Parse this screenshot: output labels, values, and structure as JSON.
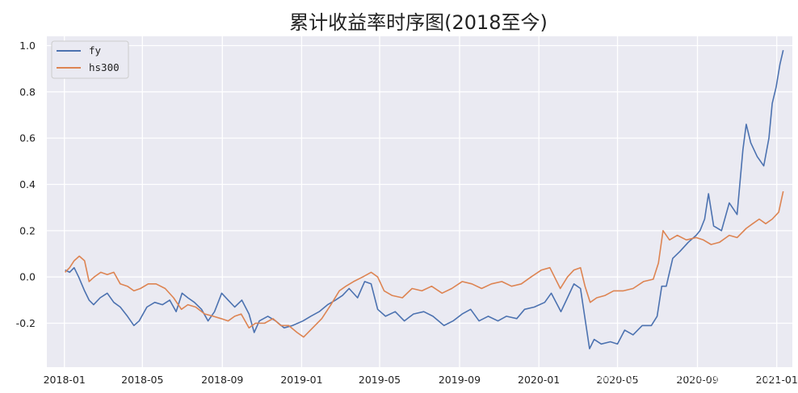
{
  "watermark": "https://blog.csdn.net/qq_42433152",
  "chart_data": {
    "type": "line",
    "title": "累计收益率时序图(2018至今)",
    "xlabel": "",
    "ylabel": "",
    "x_ticks": [
      "2018-01",
      "2018-05",
      "2018-09",
      "2019-01",
      "2019-05",
      "2019-09",
      "2020-01",
      "2020-05",
      "2020-09",
      "2021-01"
    ],
    "y_ticks": [
      "-0.2",
      "0.0",
      "0.2",
      "0.4",
      "0.6",
      "0.8",
      "1.0"
    ],
    "xlim": [
      "2017-12-05",
      "2021-01-25"
    ],
    "ylim": [
      -0.39,
      1.04
    ],
    "grid": true,
    "legend_position": "top-left",
    "colors": {
      "background": "#eaeaf2",
      "grid": "#ffffff"
    },
    "series": [
      {
        "name": "fy",
        "color": "#4c72b0",
        "points": [
          [
            "2018-01-02",
            0.03
          ],
          [
            "2018-01-09",
            0.02
          ],
          [
            "2018-01-16",
            0.04
          ],
          [
            "2018-01-23",
            0.0
          ],
          [
            "2018-02-01",
            -0.06
          ],
          [
            "2018-02-08",
            -0.1
          ],
          [
            "2018-02-15",
            -0.12
          ],
          [
            "2018-02-25",
            -0.09
          ],
          [
            "2018-03-08",
            -0.07
          ],
          [
            "2018-03-18",
            -0.11
          ],
          [
            "2018-03-28",
            -0.13
          ],
          [
            "2018-04-08",
            -0.17
          ],
          [
            "2018-04-18",
            -0.21
          ],
          [
            "2018-04-26",
            -0.19
          ],
          [
            "2018-05-08",
            -0.13
          ],
          [
            "2018-05-20",
            -0.11
          ],
          [
            "2018-06-01",
            -0.12
          ],
          [
            "2018-06-12",
            -0.1
          ],
          [
            "2018-06-22",
            -0.15
          ],
          [
            "2018-07-01",
            -0.07
          ],
          [
            "2018-07-10",
            -0.09
          ],
          [
            "2018-07-20",
            -0.11
          ],
          [
            "2018-07-31",
            -0.14
          ],
          [
            "2018-08-10",
            -0.19
          ],
          [
            "2018-08-20",
            -0.15
          ],
          [
            "2018-08-31",
            -0.07
          ],
          [
            "2018-09-10",
            -0.1
          ],
          [
            "2018-09-20",
            -0.13
          ],
          [
            "2018-10-01",
            -0.1
          ],
          [
            "2018-10-12",
            -0.16
          ],
          [
            "2018-10-20",
            -0.24
          ],
          [
            "2018-10-28",
            -0.19
          ],
          [
            "2018-11-10",
            -0.17
          ],
          [
            "2018-11-22",
            -0.19
          ],
          [
            "2018-12-05",
            -0.22
          ],
          [
            "2018-12-18",
            -0.21
          ],
          [
            "2019-01-03",
            -0.19
          ],
          [
            "2019-01-15",
            -0.17
          ],
          [
            "2019-01-28",
            -0.15
          ],
          [
            "2019-02-10",
            -0.12
          ],
          [
            "2019-02-22",
            -0.1
          ],
          [
            "2019-03-05",
            -0.08
          ],
          [
            "2019-03-15",
            -0.05
          ],
          [
            "2019-03-28",
            -0.09
          ],
          [
            "2019-04-08",
            -0.02
          ],
          [
            "2019-04-18",
            -0.03
          ],
          [
            "2019-04-28",
            -0.14
          ],
          [
            "2019-05-10",
            -0.17
          ],
          [
            "2019-05-25",
            -0.15
          ],
          [
            "2019-06-08",
            -0.19
          ],
          [
            "2019-06-22",
            -0.16
          ],
          [
            "2019-07-08",
            -0.15
          ],
          [
            "2019-07-22",
            -0.17
          ],
          [
            "2019-08-08",
            -0.21
          ],
          [
            "2019-08-22",
            -0.19
          ],
          [
            "2019-09-05",
            -0.16
          ],
          [
            "2019-09-18",
            -0.14
          ],
          [
            "2019-10-01",
            -0.19
          ],
          [
            "2019-10-15",
            -0.17
          ],
          [
            "2019-10-30",
            -0.19
          ],
          [
            "2019-11-12",
            -0.17
          ],
          [
            "2019-11-28",
            -0.18
          ],
          [
            "2019-12-10",
            -0.14
          ],
          [
            "2019-12-25",
            -0.13
          ],
          [
            "2020-01-10",
            -0.11
          ],
          [
            "2020-01-20",
            -0.07
          ],
          [
            "2020-02-04",
            -0.15
          ],
          [
            "2020-02-14",
            -0.09
          ],
          [
            "2020-02-24",
            -0.03
          ],
          [
            "2020-03-05",
            -0.05
          ],
          [
            "2020-03-12",
            -0.18
          ],
          [
            "2020-03-19",
            -0.31
          ],
          [
            "2020-03-26",
            -0.27
          ],
          [
            "2020-04-06",
            -0.29
          ],
          [
            "2020-04-20",
            -0.28
          ],
          [
            "2020-05-01",
            -0.29
          ],
          [
            "2020-05-12",
            -0.23
          ],
          [
            "2020-05-25",
            -0.25
          ],
          [
            "2020-06-08",
            -0.21
          ],
          [
            "2020-06-22",
            -0.21
          ],
          [
            "2020-07-01",
            -0.17
          ],
          [
            "2020-07-08",
            -0.04
          ],
          [
            "2020-07-15",
            -0.04
          ],
          [
            "2020-07-25",
            0.08
          ],
          [
            "2020-08-05",
            0.11
          ],
          [
            "2020-08-18",
            0.15
          ],
          [
            "2020-08-30",
            0.18
          ],
          [
            "2020-09-05",
            0.2
          ],
          [
            "2020-09-12",
            0.25
          ],
          [
            "2020-09-18",
            0.36
          ],
          [
            "2020-09-26",
            0.22
          ],
          [
            "2020-10-08",
            0.2
          ],
          [
            "2020-10-20",
            0.32
          ],
          [
            "2020-11-01",
            0.27
          ],
          [
            "2020-11-10",
            0.55
          ],
          [
            "2020-11-15",
            0.66
          ],
          [
            "2020-11-22",
            0.58
          ],
          [
            "2020-12-02",
            0.52
          ],
          [
            "2020-12-12",
            0.48
          ],
          [
            "2020-12-20",
            0.6
          ],
          [
            "2020-12-25",
            0.75
          ],
          [
            "2020-12-31",
            0.82
          ],
          [
            "2021-01-06",
            0.92
          ],
          [
            "2021-01-11",
            0.98
          ]
        ]
      },
      {
        "name": "hs300",
        "color": "#dd8452",
        "points": [
          [
            "2018-01-02",
            0.02
          ],
          [
            "2018-01-09",
            0.04
          ],
          [
            "2018-01-16",
            0.07
          ],
          [
            "2018-01-24",
            0.09
          ],
          [
            "2018-02-01",
            0.07
          ],
          [
            "2018-02-08",
            -0.02
          ],
          [
            "2018-02-16",
            0.0
          ],
          [
            "2018-02-26",
            0.02
          ],
          [
            "2018-03-08",
            0.01
          ],
          [
            "2018-03-18",
            0.02
          ],
          [
            "2018-03-28",
            -0.03
          ],
          [
            "2018-04-08",
            -0.04
          ],
          [
            "2018-04-18",
            -0.06
          ],
          [
            "2018-04-28",
            -0.05
          ],
          [
            "2018-05-10",
            -0.03
          ],
          [
            "2018-05-22",
            -0.03
          ],
          [
            "2018-06-05",
            -0.05
          ],
          [
            "2018-06-18",
            -0.09
          ],
          [
            "2018-06-30",
            -0.14
          ],
          [
            "2018-07-10",
            -0.12
          ],
          [
            "2018-07-22",
            -0.13
          ],
          [
            "2018-08-05",
            -0.16
          ],
          [
            "2018-08-18",
            -0.17
          ],
          [
            "2018-08-30",
            -0.18
          ],
          [
            "2018-09-10",
            -0.19
          ],
          [
            "2018-09-20",
            -0.17
          ],
          [
            "2018-09-30",
            -0.16
          ],
          [
            "2018-10-12",
            -0.22
          ],
          [
            "2018-10-22",
            -0.2
          ],
          [
            "2018-11-05",
            -0.2
          ],
          [
            "2018-11-18",
            -0.18
          ],
          [
            "2018-11-30",
            -0.21
          ],
          [
            "2018-12-12",
            -0.21
          ],
          [
            "2018-12-25",
            -0.24
          ],
          [
            "2019-01-04",
            -0.26
          ],
          [
            "2019-01-18",
            -0.22
          ],
          [
            "2019-02-01",
            -0.18
          ],
          [
            "2019-02-15",
            -0.12
          ],
          [
            "2019-02-28",
            -0.06
          ],
          [
            "2019-03-10",
            -0.04
          ],
          [
            "2019-03-22",
            -0.02
          ],
          [
            "2019-04-05",
            0.0
          ],
          [
            "2019-04-18",
            0.02
          ],
          [
            "2019-04-28",
            0.0
          ],
          [
            "2019-05-08",
            -0.06
          ],
          [
            "2019-05-20",
            -0.08
          ],
          [
            "2019-06-05",
            -0.09
          ],
          [
            "2019-06-20",
            -0.05
          ],
          [
            "2019-07-05",
            -0.06
          ],
          [
            "2019-07-20",
            -0.04
          ],
          [
            "2019-08-05",
            -0.07
          ],
          [
            "2019-08-20",
            -0.05
          ],
          [
            "2019-09-05",
            -0.02
          ],
          [
            "2019-09-20",
            -0.03
          ],
          [
            "2019-10-05",
            -0.05
          ],
          [
            "2019-10-20",
            -0.03
          ],
          [
            "2019-11-05",
            -0.02
          ],
          [
            "2019-11-20",
            -0.04
          ],
          [
            "2019-12-05",
            -0.03
          ],
          [
            "2019-12-20",
            0.0
          ],
          [
            "2020-01-05",
            0.03
          ],
          [
            "2020-01-18",
            0.04
          ],
          [
            "2020-02-03",
            -0.05
          ],
          [
            "2020-02-14",
            0.0
          ],
          [
            "2020-02-24",
            0.03
          ],
          [
            "2020-03-05",
            0.04
          ],
          [
            "2020-03-12",
            -0.04
          ],
          [
            "2020-03-20",
            -0.11
          ],
          [
            "2020-03-30",
            -0.09
          ],
          [
            "2020-04-12",
            -0.08
          ],
          [
            "2020-04-25",
            -0.06
          ],
          [
            "2020-05-10",
            -0.06
          ],
          [
            "2020-05-25",
            -0.05
          ],
          [
            "2020-06-10",
            -0.02
          ],
          [
            "2020-06-25",
            -0.01
          ],
          [
            "2020-07-03",
            0.06
          ],
          [
            "2020-07-10",
            0.2
          ],
          [
            "2020-07-20",
            0.16
          ],
          [
            "2020-08-01",
            0.18
          ],
          [
            "2020-08-15",
            0.16
          ],
          [
            "2020-08-30",
            0.17
          ],
          [
            "2020-09-10",
            0.16
          ],
          [
            "2020-09-22",
            0.14
          ],
          [
            "2020-10-05",
            0.15
          ],
          [
            "2020-10-20",
            0.18
          ],
          [
            "2020-11-01",
            0.17
          ],
          [
            "2020-11-15",
            0.21
          ],
          [
            "2020-11-25",
            0.23
          ],
          [
            "2020-12-05",
            0.25
          ],
          [
            "2020-12-15",
            0.23
          ],
          [
            "2020-12-25",
            0.25
          ],
          [
            "2021-01-04",
            0.28
          ],
          [
            "2021-01-11",
            0.37
          ]
        ]
      }
    ]
  }
}
